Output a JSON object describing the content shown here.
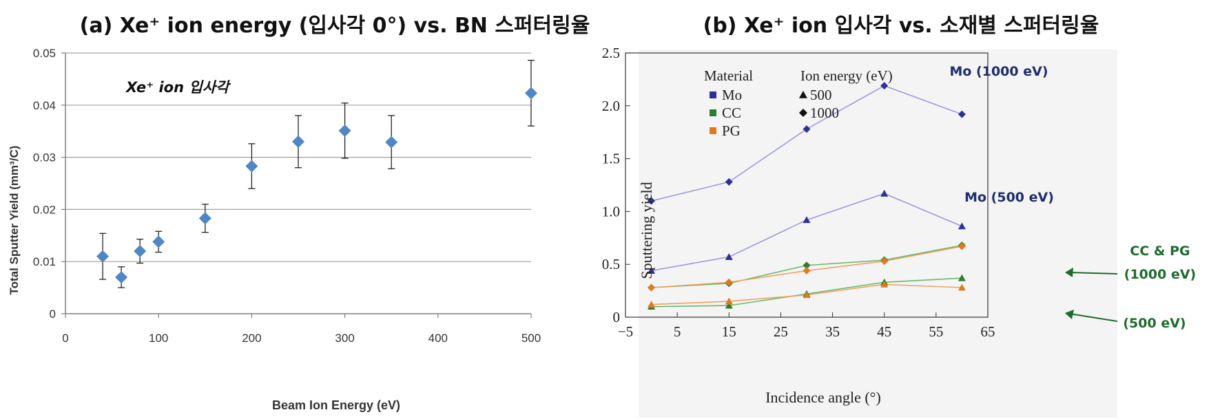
{
  "chart_data": [
    {
      "type": "scatter",
      "title": "(a) Xe⁺ ion energy (입사각 0°) vs. BN 스퍼터링율",
      "annotation": "Xe⁺ ion 입사각",
      "xlabel": "Beam Ion Energy (eV)",
      "ylabel": "Total Sputter Yield (mm³/C)",
      "xlim": [
        0,
        500
      ],
      "ylim": [
        0,
        0.05
      ],
      "xticks": [
        0,
        100,
        200,
        300,
        400,
        500
      ],
      "xtick_labels": [
        "0",
        "100",
        "200",
        "300",
        "400",
        "500"
      ],
      "yticks": [
        0,
        0.01,
        0.02,
        0.03,
        0.04,
        0.05
      ],
      "ytick_labels": [
        "0",
        "0.01",
        "0.02",
        "0.03",
        "0.04",
        "0.05"
      ],
      "grid": "horizontal",
      "color": "#4f86c6",
      "x": [
        40,
        60,
        80,
        100,
        150,
        200,
        250,
        300,
        350,
        500
      ],
      "y": [
        0.011,
        0.007,
        0.012,
        0.0138,
        0.0183,
        0.0283,
        0.033,
        0.0351,
        0.0329,
        0.0423
      ],
      "err": [
        0.0044,
        0.002,
        0.0023,
        0.002,
        0.0027,
        0.0043,
        0.005,
        0.0053,
        0.0051,
        0.0063
      ]
    },
    {
      "type": "line",
      "title": "(b) Xe⁺ ion 입사각 vs. 소재별 스퍼터링율",
      "xlabel": "Incidence angle (°)",
      "ylabel": "Sputtering yield",
      "xlim": [
        -5,
        65
      ],
      "ylim": [
        0,
        2.5
      ],
      "xticks": [
        -5,
        5,
        15,
        25,
        35,
        45,
        55,
        65
      ],
      "xtick_labels": [
        "−5",
        "5",
        "15",
        "25",
        "35",
        "45",
        "55",
        "65"
      ],
      "yticks": [
        0,
        0.5,
        1.0,
        1.5,
        2.0,
        2.5
      ],
      "ytick_labels": [
        "0",
        "0.5",
        "1.0",
        "1.5",
        "2.0",
        "2.5"
      ],
      "legend_material_title": "Material",
      "legend_energy_title": "Ion energy (eV)",
      "legend_materials": [
        {
          "name": "Mo",
          "color": "#2e3192"
        },
        {
          "name": "CC",
          "color": "#2e7d32"
        },
        {
          "name": "PG",
          "color": "#e07a22"
        }
      ],
      "legend_energies": [
        {
          "label": "500",
          "marker": "triangle"
        },
        {
          "label": "1000",
          "marker": "diamond"
        }
      ],
      "x": [
        0,
        15,
        30,
        45,
        60
      ],
      "series": [
        {
          "name": "Mo 1000 eV",
          "material": "Mo",
          "energy": "1000",
          "marker": "diamond",
          "color": "#2e3192",
          "line": "#9b9be0",
          "values": [
            1.1,
            1.28,
            1.78,
            2.19,
            1.92
          ]
        },
        {
          "name": "Mo 500 eV",
          "material": "Mo",
          "energy": "500",
          "marker": "triangle",
          "color": "#2e3192",
          "line": "#9b9be0",
          "values": [
            0.44,
            0.57,
            0.92,
            1.17,
            0.86
          ]
        },
        {
          "name": "CC 1000 eV",
          "material": "CC",
          "energy": "1000",
          "marker": "diamond",
          "color": "#2e7d32",
          "line": "#66bb6a",
          "values": [
            0.28,
            0.32,
            0.49,
            0.54,
            0.68
          ]
        },
        {
          "name": "PG 1000 eV",
          "material": "PG",
          "energy": "1000",
          "marker": "diamond",
          "color": "#e07a22",
          "line": "#f0a060",
          "values": [
            0.28,
            0.33,
            0.44,
            0.53,
            0.67
          ]
        },
        {
          "name": "CC 500 eV",
          "material": "CC",
          "energy": "500",
          "marker": "triangle",
          "color": "#2e7d32",
          "line": "#66bb6a",
          "values": [
            0.1,
            0.11,
            0.22,
            0.33,
            0.37
          ]
        },
        {
          "name": "PG 500 eV",
          "material": "PG",
          "energy": "500",
          "marker": "triangle",
          "color": "#e07a22",
          "line": "#f0a060",
          "values": [
            0.12,
            0.15,
            0.21,
            0.31,
            0.28
          ]
        }
      ],
      "annotations": [
        {
          "text": "Mo (1000 eV)",
          "color": "#1f2d6b"
        },
        {
          "text": "Mo (500 eV)",
          "color": "#1f2d6b"
        },
        {
          "text": "CC & PG",
          "color": "#1e6b2e"
        },
        {
          "text": "(1000 eV)",
          "color": "#1e6b2e"
        },
        {
          "text": "(500 eV)",
          "color": "#1e6b2e"
        }
      ]
    }
  ]
}
